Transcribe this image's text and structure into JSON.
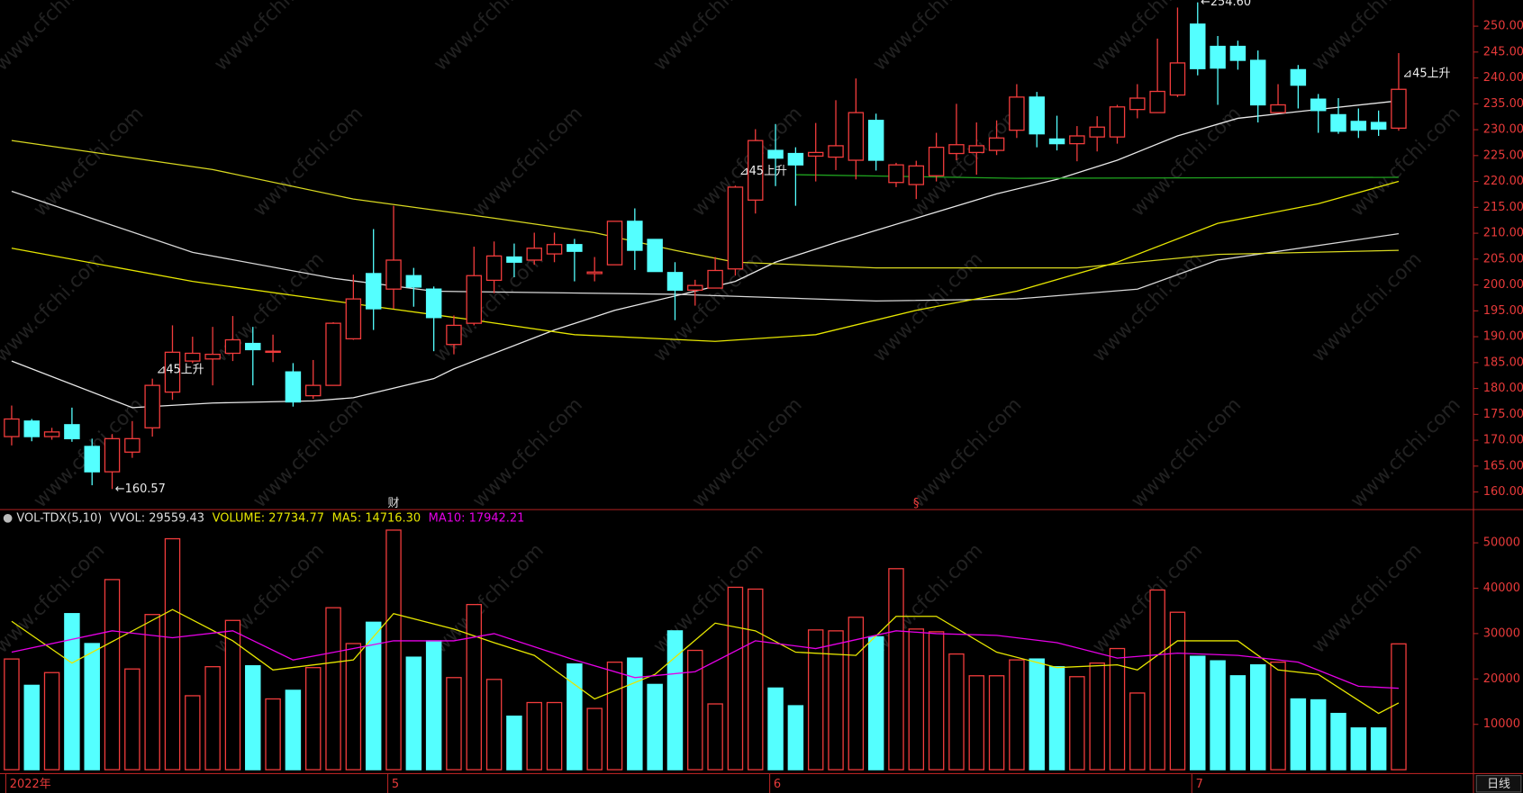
{
  "chart_data": [
    {
      "type": "candlestick",
      "up_color": "#f23c3c",
      "down_color": "#54ffff",
      "open": [
        170.7,
        173.7,
        170.7,
        173.0,
        168.8,
        163.9,
        167.7,
        172.4,
        179.3,
        185.3,
        185.7,
        186.8,
        188.7,
        187.0,
        183.2,
        178.6,
        180.6,
        189.6,
        202.2,
        199.2,
        201.8,
        199.2,
        188.5,
        192.6,
        200.9,
        205.4,
        204.8,
        206.0,
        207.8,
        202.2,
        203.9,
        212.3,
        208.8,
        202.4,
        199.0,
        199.4,
        203.1,
        216.4,
        226.0,
        225.4,
        224.9,
        224.7,
        224.1,
        231.8,
        219.8,
        219.4,
        221.1,
        225.4,
        225.6,
        226.0,
        229.9,
        236.3,
        228.2,
        227.3,
        228.6,
        228.6,
        233.9,
        233.3,
        236.7,
        250.4,
        246.1,
        246.1,
        243.4,
        233.3,
        241.6,
        235.9,
        232.9,
        231.6,
        231.4,
        230.3
      ],
      "high": [
        176.7,
        174.1,
        172.4,
        176.3,
        170.3,
        171.2,
        173.7,
        181.9,
        192.2,
        190.0,
        191.9,
        194.0,
        191.9,
        190.4,
        184.9,
        185.5,
        192.8,
        202.0,
        210.8,
        215.3,
        203.3,
        199.7,
        194.1,
        207.4,
        208.4,
        208.0,
        210.1,
        210.1,
        208.9,
        205.4,
        212.3,
        214.8,
        208.8,
        204.4,
        201.0,
        205.4,
        219.2,
        230.1,
        231.1,
        226.6,
        231.3,
        235.7,
        239.9,
        233.1,
        223.6,
        224.0,
        229.4,
        235.0,
        231.4,
        231.8,
        238.8,
        237.3,
        232.7,
        230.7,
        232.6,
        234.8,
        238.8,
        247.6,
        253.6,
        254.6,
        248.1,
        247.2,
        245.3,
        238.8,
        242.5,
        236.9,
        236.1,
        234.1,
        233.7,
        244.8
      ],
      "low": [
        169.0,
        169.8,
        170.1,
        169.7,
        161.3,
        160.57,
        166.6,
        170.7,
        177.8,
        184.9,
        180.6,
        185.3,
        180.6,
        185.1,
        176.5,
        178.0,
        180.6,
        189.4,
        191.3,
        195.4,
        195.8,
        187.2,
        186.6,
        192.2,
        198.4,
        201.5,
        203.9,
        204.4,
        200.7,
        200.7,
        203.9,
        202.9,
        202.6,
        193.2,
        196.0,
        199.4,
        201.8,
        213.8,
        219.1,
        215.3,
        220.0,
        222.2,
        220.4,
        222.1,
        218.9,
        216.6,
        220.0,
        224.1,
        221.3,
        225.1,
        228.4,
        226.6,
        226.0,
        223.9,
        225.8,
        227.3,
        232.2,
        233.3,
        236.3,
        240.5,
        234.8,
        241.6,
        231.4,
        233.3,
        234.1,
        229.4,
        229.2,
        228.4,
        228.8,
        229.8
      ],
      "close": [
        174.1,
        170.7,
        171.6,
        170.3,
        163.9,
        170.3,
        170.3,
        180.6,
        187.0,
        186.8,
        186.6,
        189.4,
        187.5,
        187.2,
        177.4,
        180.6,
        192.6,
        197.3,
        195.4,
        204.8,
        199.6,
        193.7,
        192.2,
        201.8,
        205.6,
        204.4,
        207.1,
        207.8,
        206.5,
        202.5,
        212.3,
        206.7,
        202.6,
        199.0,
        199.9,
        202.8,
        218.9,
        227.9,
        224.5,
        223.2,
        225.6,
        226.9,
        233.3,
        224.1,
        223.2,
        223.0,
        226.6,
        227.1,
        226.9,
        228.4,
        236.3,
        229.2,
        227.3,
        228.8,
        230.5,
        234.4,
        236.1,
        237.4,
        242.9,
        241.8,
        241.9,
        243.4,
        234.8,
        234.8,
        238.6,
        233.7,
        229.7,
        229.9,
        230.1,
        237.8
      ],
      "ylim": [
        158.1,
        255.06
      ],
      "yticks": [
        {
          "value": 160,
          "label": "160.00"
        },
        {
          "value": 165,
          "label": "165.00"
        },
        {
          "value": 170,
          "label": "170.00"
        },
        {
          "value": 175,
          "label": "175.00"
        },
        {
          "value": 180,
          "label": "180.00"
        },
        {
          "value": 185,
          "label": "185.00"
        },
        {
          "value": 190,
          "label": "190.00"
        },
        {
          "value": 195,
          "label": "195.00"
        },
        {
          "value": 200,
          "label": "200.00"
        },
        {
          "value": 205,
          "label": "205.00"
        },
        {
          "value": 210,
          "label": "210.00"
        },
        {
          "value": 215,
          "label": "215.00"
        },
        {
          "value": 220,
          "label": "220.00"
        },
        {
          "value": 225,
          "label": "225.00"
        },
        {
          "value": 230,
          "label": "230.00"
        },
        {
          "value": 235,
          "label": "235.00"
        },
        {
          "value": 240,
          "label": "240.00"
        },
        {
          "value": 245,
          "label": "245.00"
        },
        {
          "value": 250,
          "label": "250.00"
        }
      ],
      "overlays": [
        {
          "color": "#d8d8d8",
          "x": [
            0,
            9,
            16,
            21,
            33,
            43,
            50,
            56,
            60,
            66,
            69
          ],
          "values": [
            218.1,
            206.3,
            201.3,
            198.8,
            198.2,
            196.9,
            197.3,
            199.2,
            204.8,
            208.2,
            209.9
          ]
        },
        {
          "color": "#e8e8e8",
          "x": [
            0,
            6,
            10,
            15,
            17,
            21,
            22,
            27,
            30,
            34,
            36,
            38,
            41,
            45,
            49,
            52,
            55,
            58,
            61,
            64,
            69
          ],
          "values": [
            185.3,
            176.3,
            177.2,
            177.6,
            178.2,
            181.9,
            183.8,
            191.3,
            195.1,
            198.8,
            200.7,
            204.4,
            208.2,
            212.9,
            217.6,
            220.4,
            224.1,
            228.8,
            232.2,
            233.5,
            235.6
          ]
        },
        {
          "color": "#d8d820",
          "x": [
            0,
            10,
            17,
            24,
            29,
            33,
            36,
            43,
            53,
            60,
            69
          ],
          "values": [
            227.9,
            222.3,
            216.6,
            212.9,
            210.1,
            206.7,
            204.4,
            203.3,
            203.3,
            205.9,
            206.7
          ]
        },
        {
          "color": "#e6e600",
          "x": [
            0,
            9,
            16,
            23,
            28,
            35,
            40,
            45,
            50,
            55,
            60,
            65,
            69
          ],
          "values": [
            207.1,
            200.7,
            196.9,
            193.2,
            190.4,
            189.1,
            190.4,
            195.1,
            198.8,
            204.4,
            211.9,
            215.7,
            220.0
          ]
        },
        {
          "color": "#1fa31f",
          "x": [
            39,
            50,
            69
          ],
          "values": [
            221.3,
            220.6,
            220.8
          ]
        }
      ],
      "annotations": [
        {
          "index": 5,
          "value": 160.57,
          "label": "←160.57"
        },
        {
          "index": 59,
          "value": 254.6,
          "label": "←254.60"
        }
      ],
      "signals": [
        {
          "index": 7,
          "text": "⊿45上升"
        },
        {
          "index": 36,
          "text": "⊿45上升"
        },
        {
          "index": 69,
          "text": "⊿45上升"
        }
      ],
      "markers": [
        {
          "index": 19,
          "text": "财",
          "color": "#dddddd"
        },
        {
          "index": 45,
          "text": "§",
          "color": "#f23c3c"
        }
      ],
      "watermark": "www.cfchi.com"
    },
    {
      "type": "bar",
      "header": [
        {
          "text": "VOL-TDX(5,10)",
          "color": "#dddddd"
        },
        {
          "text": "VVOL: 29559.43",
          "color": "#dddddd"
        },
        {
          "text": "VOLUME: 27734.77",
          "color": "#e6e600"
        },
        {
          "text": "MA5: 14716.30",
          "color": "#e6e600"
        },
        {
          "text": "MA10: 17942.21",
          "color": "#e600e6"
        }
      ],
      "values": [
        24400,
        18600,
        21400,
        34400,
        27800,
        41900,
        22200,
        34200,
        50900,
        16300,
        22700,
        32900,
        22900,
        15600,
        17500,
        22500,
        35700,
        27800,
        32500,
        52800,
        24800,
        28400,
        20300,
        36400,
        19900,
        11800,
        14800,
        14800,
        23300,
        13500,
        23700,
        24600,
        18800,
        30600,
        26300,
        14500,
        40200,
        39800,
        18000,
        14100,
        30800,
        30600,
        33600,
        29300,
        44300,
        31000,
        30400,
        25500,
        20700,
        20700,
        24200,
        24400,
        22700,
        20500,
        23500,
        26700,
        16900,
        39600,
        34700,
        25000,
        24000,
        20700,
        23100,
        23700,
        15600,
        15400,
        12400,
        9200,
        9200,
        27734.77
      ],
      "ylim": [
        0,
        56900
      ],
      "yticks": [
        10000,
        20000,
        30000,
        40000,
        50000
      ],
      "lines": [
        {
          "color": "#e6e600",
          "x": [
            0,
            3,
            8,
            11,
            13,
            17,
            19,
            22,
            24,
            26,
            29,
            32,
            35,
            37,
            39,
            42,
            44,
            46,
            49,
            52,
            55,
            56,
            58,
            61,
            63,
            65,
            68,
            69
          ],
          "values": [
            32700,
            23500,
            35300,
            28400,
            22000,
            24200,
            34400,
            31000,
            28000,
            25200,
            15600,
            21000,
            32300,
            30600,
            25900,
            25200,
            33800,
            33800,
            25900,
            22500,
            23100,
            22000,
            28400,
            28400,
            22000,
            21000,
            12400,
            14716.3
          ]
        },
        {
          "color": "#e600e6",
          "x": [
            0,
            5,
            8,
            11,
            14,
            17,
            19,
            22,
            24,
            28,
            31,
            34,
            37,
            40,
            44,
            46,
            49,
            52,
            55,
            58,
            61,
            64,
            67,
            69
          ],
          "values": [
            25900,
            30600,
            29100,
            30600,
            24200,
            26700,
            28400,
            28400,
            30000,
            24200,
            20300,
            21600,
            28400,
            26700,
            30600,
            30000,
            29600,
            28000,
            24600,
            25700,
            25200,
            23700,
            18400,
            17942.21
          ]
        }
      ],
      "date_labels": [
        {
          "index": 0,
          "label": "2022年"
        },
        {
          "index": 19,
          "label": "5"
        },
        {
          "index": 38,
          "label": "6"
        },
        {
          "index": 59,
          "label": "7"
        }
      ],
      "period": "日线"
    }
  ]
}
